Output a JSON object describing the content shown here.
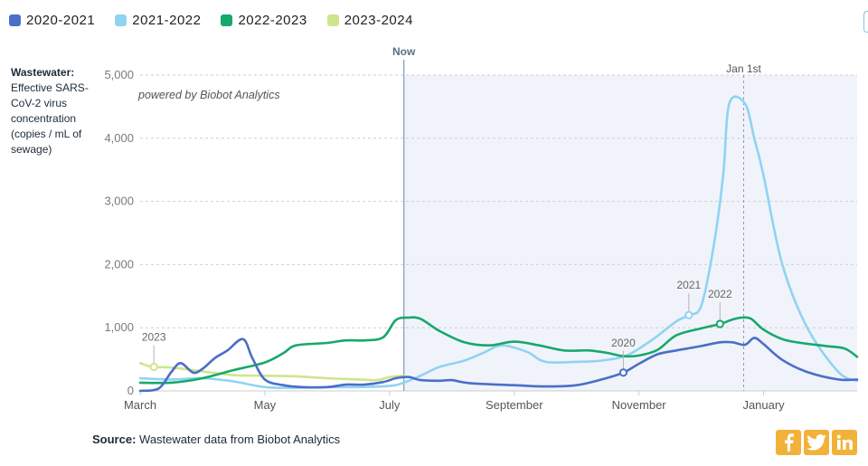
{
  "legend": {
    "items": [
      {
        "label": "2020-2021",
        "color": "#4a6fc7"
      },
      {
        "label": "2021-2022",
        "color": "#8fd3f2"
      },
      {
        "label": "2022-2023",
        "color": "#17a86b"
      },
      {
        "label": "2023-2024",
        "color": "#cfe58c"
      }
    ]
  },
  "ylabel": {
    "title": "Wastewater:",
    "description": "Effective SARS-CoV-2 virus concentration (copies / mL of sewage)"
  },
  "source": {
    "label": "Source:",
    "text": "Wastewater data from Biobot Analytics"
  },
  "social": {
    "icons": [
      "facebook-icon",
      "twitter-icon",
      "linkedin-icon"
    ]
  },
  "chart_data": {
    "type": "line",
    "watermark": "powered by Biobot Analytics",
    "xlim": [
      0,
      11.5
    ],
    "ylim": [
      0,
      5000
    ],
    "yticks": [
      0,
      1000,
      2000,
      3000,
      4000,
      5000
    ],
    "ytick_labels": [
      "0",
      "1,000",
      "2,000",
      "3,000",
      "4,000",
      "5,000"
    ],
    "xticks": [
      {
        "at": 0,
        "label": "March"
      },
      {
        "at": 2,
        "label": "May"
      },
      {
        "at": 4,
        "label": "July"
      },
      {
        "at": 6,
        "label": "September"
      },
      {
        "at": 8,
        "label": "November"
      },
      {
        "at": 10,
        "label": "January"
      }
    ],
    "now": {
      "at": 4.23,
      "label": "Now"
    },
    "jan1": {
      "at": 9.68,
      "label": "Jan 1st"
    },
    "series": [
      {
        "name": "2020-2021",
        "color": "#4a6fc7",
        "x": [
          0,
          0.3,
          0.5,
          0.65,
          0.85,
          1.0,
          1.2,
          1.4,
          1.65,
          1.8,
          2.0,
          2.3,
          2.6,
          3.0,
          3.3,
          3.6,
          3.9,
          4.1,
          4.3,
          4.5,
          4.8,
          5.0,
          5.3,
          6.0,
          6.5,
          7.0,
          7.4,
          7.75,
          8.0,
          8.3,
          8.6,
          9.0,
          9.3,
          9.5,
          9.7,
          9.85,
          10.0,
          10.3,
          10.7,
          11.2,
          11.5
        ],
        "y": [
          0,
          40,
          300,
          440,
          290,
          350,
          520,
          640,
          820,
          520,
          180,
          90,
          60,
          60,
          100,
          100,
          140,
          200,
          220,
          170,
          160,
          170,
          120,
          90,
          70,
          90,
          180,
          290,
          430,
          580,
          640,
          710,
          770,
          770,
          730,
          840,
          740,
          490,
          300,
          180,
          180
        ]
      },
      {
        "name": "2021-2022",
        "color": "#8fd3f2",
        "x": [
          0,
          0.5,
          1.0,
          1.5,
          2.0,
          2.5,
          3.0,
          3.5,
          4.0,
          4.2,
          4.5,
          4.8,
          5.2,
          5.5,
          5.8,
          6.2,
          6.5,
          7.0,
          7.4,
          7.8,
          8.2,
          8.6,
          8.8,
          9.0,
          9.2,
          9.35,
          9.45,
          9.7,
          9.85,
          10.0,
          10.3,
          10.7,
          11.2,
          11.5
        ],
        "y": [
          200,
          180,
          200,
          150,
          60,
          50,
          60,
          60,
          80,
          120,
          240,
          380,
          480,
          600,
          720,
          620,
          460,
          460,
          480,
          560,
          800,
          1100,
          1200,
          1350,
          2300,
          3400,
          4550,
          4550,
          4000,
          3400,
          2000,
          1000,
          300,
          160
        ]
      },
      {
        "name": "2022-2023",
        "color": "#17a86b",
        "x": [
          0,
          0.5,
          1.0,
          1.5,
          2.0,
          2.3,
          2.5,
          3.0,
          3.3,
          3.6,
          3.9,
          4.1,
          4.3,
          4.5,
          4.8,
          5.2,
          5.6,
          6.0,
          6.4,
          6.8,
          7.2,
          7.5,
          7.75,
          8.0,
          8.3,
          8.6,
          9.0,
          9.3,
          9.5,
          9.65,
          9.8,
          10.0,
          10.3,
          10.6,
          11.0,
          11.3,
          11.5
        ],
        "y": [
          130,
          130,
          200,
          330,
          450,
          600,
          720,
          760,
          800,
          800,
          850,
          1120,
          1160,
          1140,
          950,
          770,
          720,
          780,
          720,
          640,
          640,
          600,
          550,
          560,
          650,
          880,
          990,
          1060,
          1130,
          1160,
          1140,
          970,
          820,
          760,
          710,
          670,
          540
        ]
      },
      {
        "name": "2023-2024",
        "color": "#cfe58c",
        "x": [
          0,
          0.2,
          0.5,
          1.0,
          1.5,
          2.0,
          2.5,
          3.0,
          3.5,
          3.8,
          4.0,
          4.23
        ],
        "y": [
          440,
          380,
          370,
          310,
          250,
          240,
          230,
          200,
          180,
          170,
          220,
          240
        ]
      }
    ],
    "annotations": [
      {
        "label": "2023",
        "x": 0.22,
        "y": 380,
        "series": "2023-2024"
      },
      {
        "label": "2020",
        "x": 7.75,
        "y": 290,
        "series": "2020-2021"
      },
      {
        "label": "2021",
        "x": 8.8,
        "y": 1200,
        "series": "2021-2022"
      },
      {
        "label": "2022",
        "x": 9.3,
        "y": 1060,
        "series": "2022-2023"
      }
    ]
  }
}
